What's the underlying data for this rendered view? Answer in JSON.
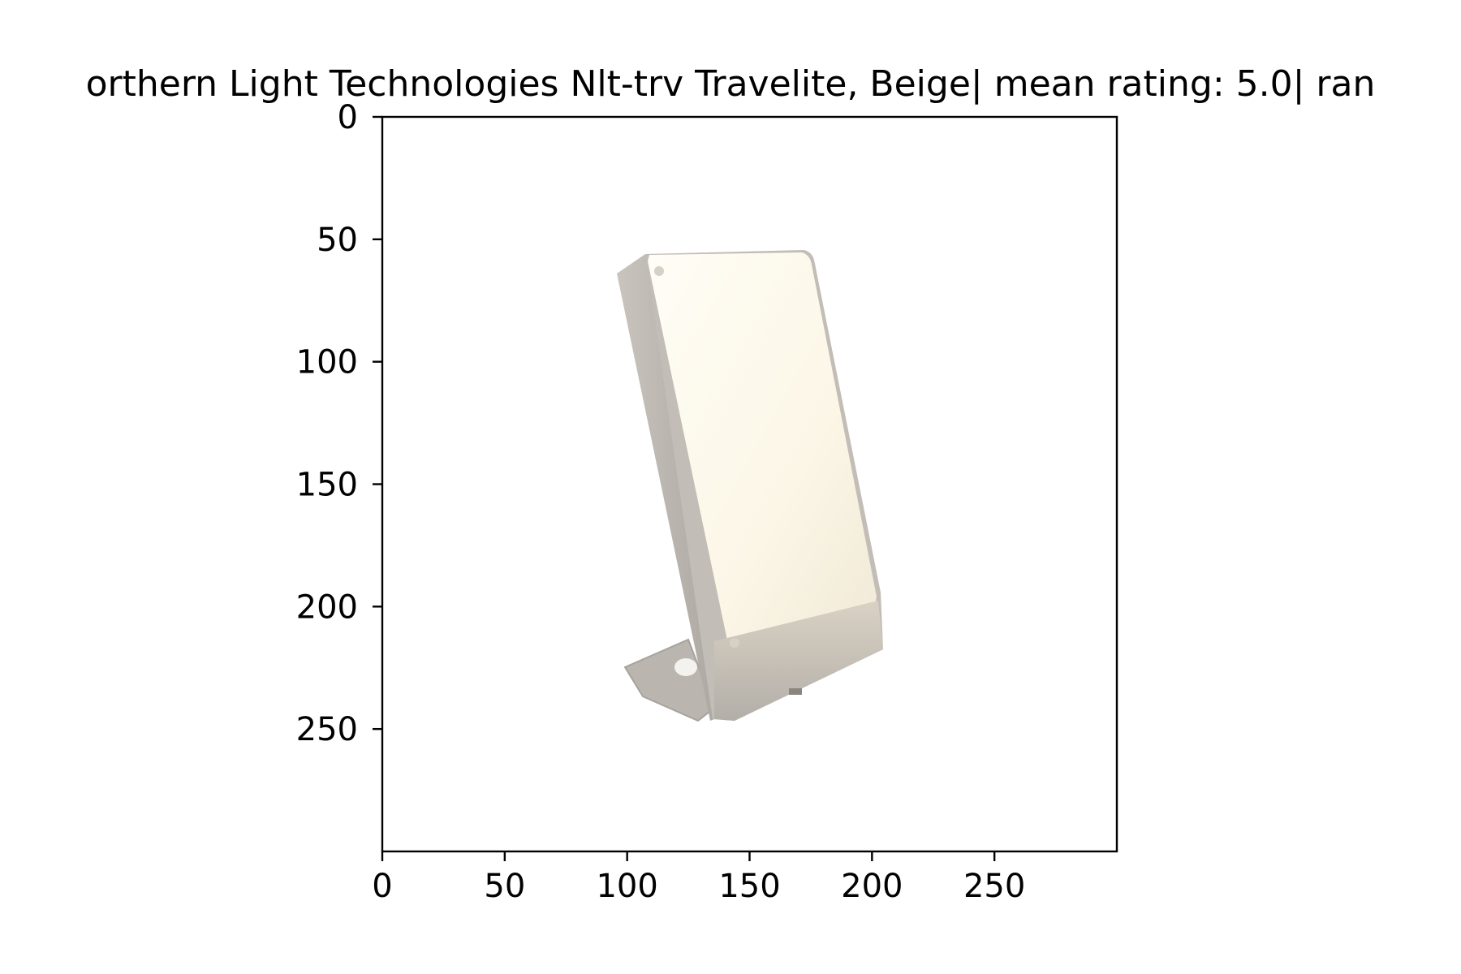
{
  "chart_data": {
    "type": "image",
    "title": "orthern Light Technologies Nlt-trv Travelite, Beige| mean rating: 5.0| ran",
    "xlabel": "",
    "ylabel": "",
    "xlim": [
      0,
      300
    ],
    "ylim": [
      300,
      0
    ],
    "x_ticks": [
      0,
      50,
      100,
      150,
      200,
      250
    ],
    "y_ticks": [
      0,
      50,
      100,
      150,
      200,
      250
    ],
    "x_tick_labels": [
      "0",
      "50",
      "100",
      "150",
      "200",
      "250"
    ],
    "y_tick_labels": [
      "0",
      "50",
      "100",
      "150",
      "200",
      "250"
    ],
    "grid": false,
    "image_content": "light-therapy-lamp-icon",
    "colors": {
      "lamp_panel": "#fbf7ea",
      "lamp_frame": "#bdb8b2",
      "axes_edge": "#000000"
    }
  }
}
